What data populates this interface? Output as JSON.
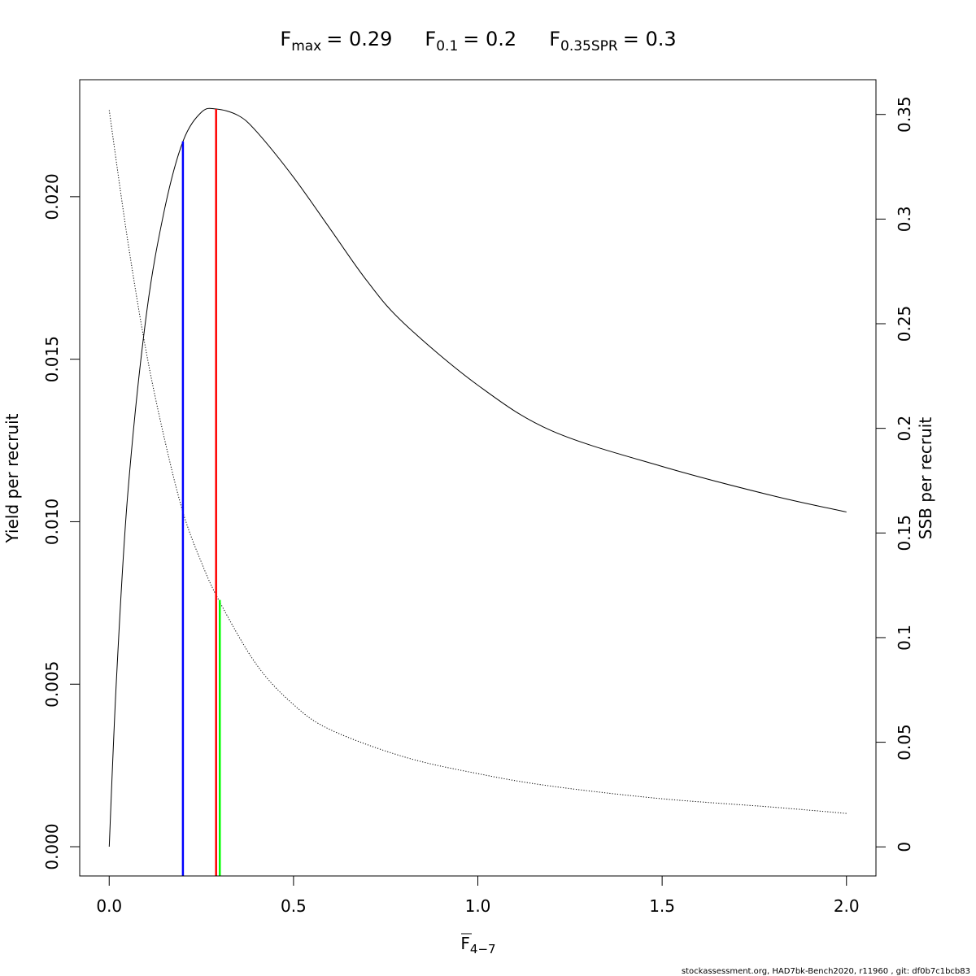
{
  "title": {
    "fmax": {
      "sym": "F",
      "sub": "max",
      "value": "= 0.29"
    },
    "f01": {
      "sym": "F",
      "sub": "0.1",
      "value": "= 0.2"
    },
    "fspr": {
      "sym": "F",
      "sub": "0.35SPR",
      "value": "= 0.3"
    }
  },
  "footer": "stockassessment.org, HAD7bk-Bench2020, r11960 , git: df0b7c1bcb83",
  "chart_data": {
    "type": "line",
    "xlabel": {
      "sym": "F",
      "sub": "4−7"
    },
    "ylabel": "Yield per recruit",
    "y2label": "SSB per recruit",
    "xlim": [
      -0.08,
      2.08
    ],
    "ylim": [
      -0.0009,
      0.0236
    ],
    "y2lim": [
      -0.0139,
      0.3666
    ],
    "x_ticks": [
      "0.0",
      "0.5",
      "1.0",
      "1.5",
      "2.0"
    ],
    "y_ticks": [
      "0.000",
      "0.005",
      "0.010",
      "0.015",
      "0.020"
    ],
    "y2_ticks": [
      "0",
      "0.05",
      "0.1",
      "0.15",
      "0.2",
      "0.25",
      "0.3",
      "0.35"
    ],
    "series": [
      {
        "axis": "left",
        "style": "solid",
        "color": "#000000",
        "x": [
          0,
          0.02,
          0.05,
          0.1,
          0.15,
          0.2,
          0.25,
          0.29,
          0.35,
          0.4,
          0.5,
          0.6,
          0.7,
          0.8,
          1.0,
          1.2,
          1.5,
          1.8,
          2.0
        ],
        "y": [
          0,
          0.0052,
          0.0108,
          0.0163,
          0.0196,
          0.0217,
          0.0226,
          0.0227,
          0.0225,
          0.022,
          0.0206,
          0.019,
          0.0174,
          0.0161,
          0.0142,
          0.0128,
          0.0117,
          0.0108,
          0.0103
        ]
      },
      {
        "axis": "right",
        "style": "dotted",
        "color": "#000000",
        "x": [
          0,
          0.05,
          0.1,
          0.15,
          0.2,
          0.25,
          0.3,
          0.4,
          0.5,
          0.6,
          0.8,
          1.0,
          1.2,
          1.5,
          1.8,
          2.0
        ],
        "y": [
          0.352,
          0.29,
          0.237,
          0.195,
          0.16,
          0.136,
          0.117,
          0.087,
          0.068,
          0.056,
          0.043,
          0.035,
          0.029,
          0.023,
          0.019,
          0.016
        ]
      }
    ],
    "reference_lines": [
      {
        "label": "F0.1",
        "x": 0.2,
        "axis": "left",
        "y_top": 0.0217,
        "color": "#0000ff"
      },
      {
        "label": "Fmax",
        "x": 0.29,
        "axis": "left",
        "y_top": 0.0227,
        "color": "#ff0000"
      },
      {
        "label": "F0.35SPR",
        "x": 0.3,
        "axis": "right",
        "y_top": 0.118,
        "color": "#00ff00"
      }
    ]
  }
}
